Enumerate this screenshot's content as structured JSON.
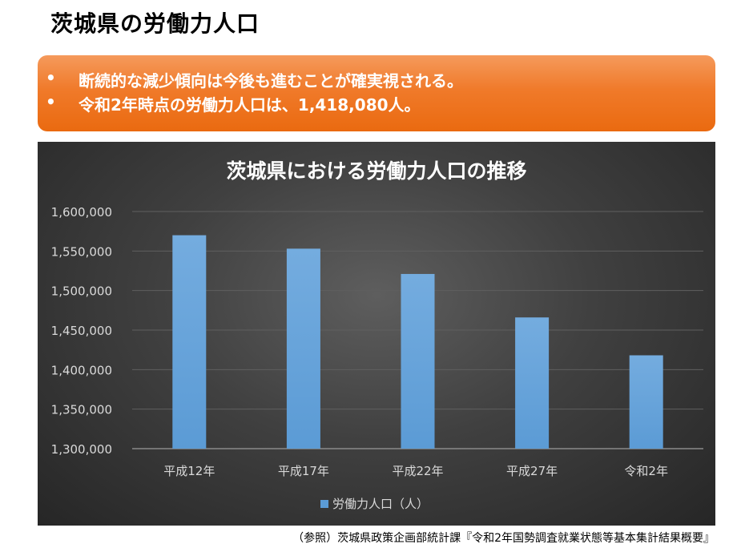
{
  "page": {
    "title": "茨城県の労働力人口"
  },
  "banner": {
    "bullet_glyph": "•",
    "points": [
      "断続的な減少傾向は今後も進むことが確実視される。",
      "令和2年時点の労働力人口は、1,418,080人。"
    ]
  },
  "chart_data": {
    "type": "bar",
    "title": "茨城県における労働力人口の推移",
    "categories": [
      "平成12年",
      "平成17年",
      "平成22年",
      "平成27年",
      "令和2年"
    ],
    "series": [
      {
        "name": "労働力人口（人）",
        "values": [
          1570000,
          1553000,
          1521000,
          1466000,
          1418080
        ]
      }
    ],
    "ylim": [
      1300000,
      1600000
    ],
    "yticks": [
      1300000,
      1350000,
      1400000,
      1450000,
      1500000,
      1550000,
      1600000
    ],
    "ytick_labels": [
      "1,300,000",
      "1,350,000",
      "1,400,000",
      "1,450,000",
      "1,500,000",
      "1,550,000",
      "1,600,000"
    ],
    "grid": true,
    "legend": "bottom",
    "colors": {
      "bar": "#5b9bd5",
      "bar_light": "#74acdf",
      "text": "#d9d9d9",
      "grid": "#5f5f5f",
      "axis": "#8a8a8a",
      "title": "#ffffff"
    }
  },
  "footer": {
    "source": "（参照）茨城県政策企画部統計課『令和2年国勢調査就業状態等基本集計結果概要』"
  }
}
